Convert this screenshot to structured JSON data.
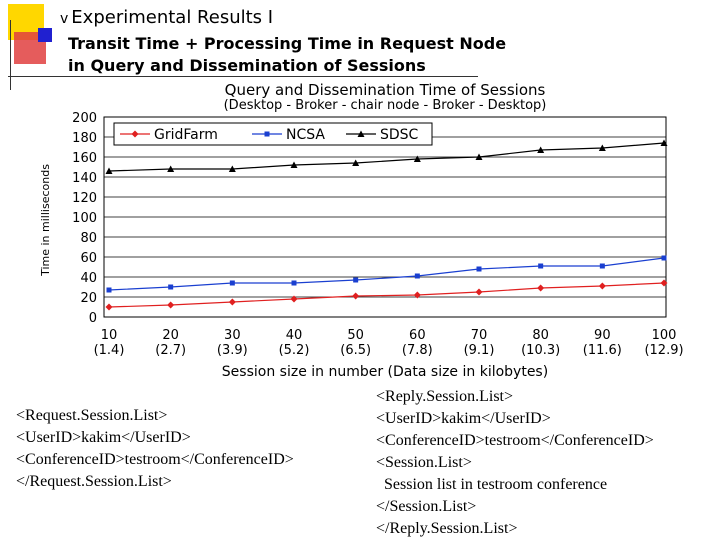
{
  "slide": {
    "title": "Experimental Results I",
    "title_bullet": "v",
    "subtitle_lines": [
      "Transit Time + Processing Time in Request Node",
      "in Query and Dissemination of Sessions"
    ]
  },
  "colors": {
    "accent_yellow": "#FFD700",
    "accent_blue": "#2020E0",
    "accent_red": "#E03030",
    "gridfarm": "#E02020",
    "ncsa": "#1A3FD0",
    "sdsc": "#000000"
  },
  "chart_data": {
    "type": "line",
    "title": "Query and Dissemination Time of Sessions",
    "subtitle": "(Desktop - Broker - chair node - Broker - Desktop)",
    "xlabel": "Session size in number (Data size in kilobytes)",
    "ylabel": "Time in milliseconds",
    "categories": [
      "10",
      "20",
      "30",
      "40",
      "50",
      "60",
      "70",
      "80",
      "90",
      "100"
    ],
    "category_sublabels": [
      "(1.4)",
      "(2.7)",
      "(3.9)",
      "(5.2)",
      "(6.5)",
      "(7.8)",
      "(9.1)",
      "(10.3)",
      "(11.6)",
      "(12.9)"
    ],
    "ylim": [
      0,
      200
    ],
    "yticks": [
      0,
      20,
      40,
      60,
      80,
      100,
      120,
      140,
      160,
      180,
      200
    ],
    "grid": true,
    "legend_position": "top",
    "series": [
      {
        "name": "GridFarm",
        "color": "#E02020",
        "marker": "diamond",
        "values": [
          10,
          12,
          15,
          18,
          21,
          22,
          25,
          29,
          31,
          34
        ]
      },
      {
        "name": "NCSA",
        "color": "#1A3FD0",
        "marker": "square",
        "values": [
          27,
          30,
          34,
          34,
          37,
          41,
          48,
          51,
          51,
          59
        ]
      },
      {
        "name": "SDSC",
        "color": "#000000",
        "marker": "triangle",
        "values": [
          146,
          148,
          148,
          152,
          154,
          158,
          160,
          167,
          169,
          174
        ]
      }
    ]
  },
  "request_xml": {
    "lines": [
      "<Request.Session.List>",
      "<UserID>kakim</UserID>",
      "<ConferenceID>testroom</ConferenceID>",
      "</Request.Session.List>"
    ]
  },
  "reply_xml": {
    "lines": [
      "<Reply.Session.List>",
      "<UserID>kakim</UserID>",
      "<ConferenceID>testroom</ConferenceID>",
      "<Session.List>",
      "  Session list in testroom conference",
      "</Session.List>",
      "</Reply.Session.List>"
    ]
  }
}
